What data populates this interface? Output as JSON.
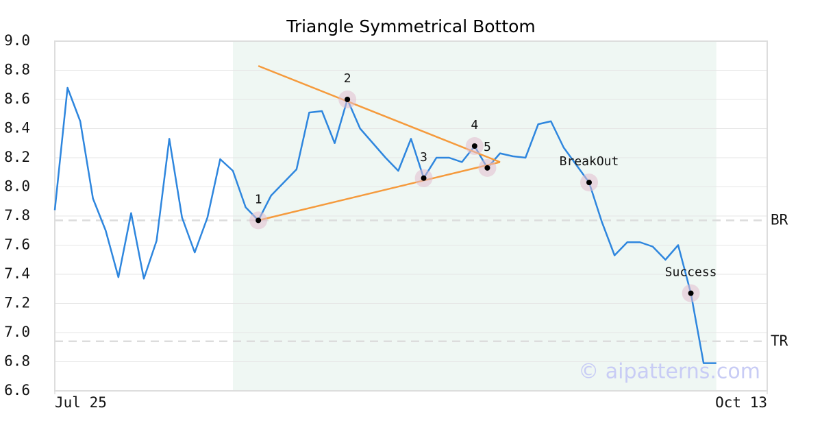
{
  "chart_data": {
    "type": "line",
    "title": "Triangle Symmetrical Bottom",
    "x": [
      0,
      1,
      2,
      3,
      4,
      5,
      6,
      7,
      8,
      9,
      10,
      11,
      12,
      13,
      14,
      15,
      16,
      17,
      18,
      19,
      20,
      21,
      22,
      23,
      24,
      25,
      26,
      27,
      28,
      29,
      30,
      31,
      32,
      33,
      34,
      35,
      36,
      37,
      38,
      39,
      40,
      41,
      42,
      43,
      44,
      45,
      46,
      47,
      48,
      49,
      50,
      51,
      52
    ],
    "values": [
      7.84,
      8.68,
      8.45,
      7.92,
      7.7,
      7.38,
      7.82,
      7.37,
      7.63,
      8.33,
      7.79,
      7.55,
      7.79,
      8.19,
      8.11,
      7.86,
      7.77,
      7.94,
      8.03,
      8.12,
      8.51,
      8.52,
      8.3,
      8.6,
      8.4,
      8.3,
      8.2,
      8.11,
      8.33,
      8.06,
      8.2,
      8.2,
      8.17,
      8.28,
      8.13,
      8.23,
      8.21,
      8.2,
      8.43,
      8.45,
      8.27,
      8.15,
      8.03,
      7.76,
      7.53,
      7.62,
      7.62,
      7.59,
      7.5,
      7.6,
      7.27,
      6.79,
      6.79
    ],
    "color": "#2e86de",
    "xlim": [
      0,
      56
    ],
    "xticks": [
      {
        "value": 0,
        "label": "Jul 25"
      },
      {
        "value": 56,
        "label": "Oct 13"
      }
    ],
    "ylim": [
      6.6,
      9.0
    ],
    "yticks": [
      {
        "value": 6.6,
        "label": "6.6"
      },
      {
        "value": 6.8,
        "label": "6.8"
      },
      {
        "value": 7.0,
        "label": "7.0"
      },
      {
        "value": 7.2,
        "label": "7.2"
      },
      {
        "value": 7.4,
        "label": "7.4"
      },
      {
        "value": 7.6,
        "label": "7.6"
      },
      {
        "value": 7.8,
        "label": "7.8"
      },
      {
        "value": 8.0,
        "label": "8.0"
      },
      {
        "value": 8.2,
        "label": "8.2"
      },
      {
        "value": 8.4,
        "label": "8.4"
      },
      {
        "value": 8.6,
        "label": "8.6"
      },
      {
        "value": 8.8,
        "label": "8.8"
      },
      {
        "value": 9.0,
        "label": "9.0"
      }
    ],
    "grid": true,
    "highlight": [
      14,
      52
    ],
    "trendlines": [
      {
        "color": "#f59a3c",
        "x": [
          16,
          35
        ],
        "y": [
          8.83,
          8.17
        ]
      },
      {
        "color": "#f59a3c",
        "x": [
          16,
          35
        ],
        "y": [
          7.77,
          8.17
        ]
      }
    ],
    "levels": [
      {
        "label": "BR",
        "value": 7.77
      },
      {
        "label": "TR",
        "value": 6.94
      }
    ],
    "points": [
      {
        "label": "1",
        "x": 16,
        "y": 7.77
      },
      {
        "label": "2",
        "x": 23,
        "y": 8.6
      },
      {
        "label": "3",
        "x": 29,
        "y": 8.06
      },
      {
        "label": "4",
        "x": 33,
        "y": 8.28
      },
      {
        "label": "5",
        "x": 34,
        "y": 8.13
      },
      {
        "label": "BreakOut",
        "x": 42,
        "y": 8.03
      },
      {
        "label": "Success",
        "x": 50,
        "y": 7.27
      }
    ],
    "watermark": "© aipatterns.com"
  }
}
